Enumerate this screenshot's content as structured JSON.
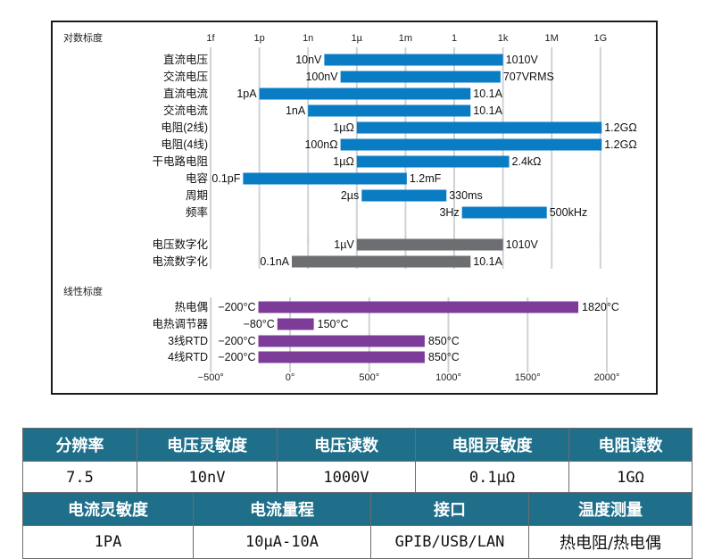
{
  "chart_data": {
    "type": "range-bar",
    "log_panel": {
      "title": "对数标度",
      "axis_ticks": [
        "1f",
        "1p",
        "1n",
        "1µ",
        "1m",
        "1",
        "1k",
        "1M",
        "1G"
      ],
      "measurement_groups": [
        {
          "rows": [
            {
              "label": "直流电压",
              "from": "10nV",
              "to": "1010V",
              "from_exp": -8,
              "to_exp": 3.004
            },
            {
              "label": "交流电压",
              "from": "100nV",
              "to": "707VRMS",
              "from_exp": -7,
              "to_exp": 2.849
            },
            {
              "label": "直流电流",
              "from": "1pA",
              "to": "10.1A",
              "from_exp": -12,
              "to_exp": 1.004
            },
            {
              "label": "交流电流",
              "from": "1nA",
              "to": "10.1A",
              "from_exp": -9,
              "to_exp": 1.004
            },
            {
              "label": "电阻(2线)",
              "from": "1µΩ",
              "to": "1.2GΩ",
              "from_exp": -6,
              "to_exp": 9.079
            },
            {
              "label": "电阻(4线)",
              "from": "100nΩ",
              "to": "1.2GΩ",
              "from_exp": -7,
              "to_exp": 9.079
            },
            {
              "label": "干电路电阻",
              "from": "1µΩ",
              "to": "2.4kΩ",
              "from_exp": -6,
              "to_exp": 3.38
            },
            {
              "label": "电容",
              "from": "0.1pF",
              "to": "1.2mF",
              "from_exp": -13,
              "to_exp": -2.921
            },
            {
              "label": "周期",
              "from": "2µs",
              "to": "330ms",
              "from_exp": -5.699,
              "to_exp": -0.481
            },
            {
              "label": "频率",
              "from": "3Hz",
              "to": "500kHz",
              "from_exp": 0.477,
              "to_exp": 5.699
            }
          ],
          "color": "#0a7cc4"
        },
        {
          "rows": [
            {
              "label": "电压数字化",
              "from": "1µV",
              "to": "1010V",
              "from_exp": -6,
              "to_exp": 3.004
            },
            {
              "label": "电流数字化",
              "from": "0.1nA",
              "to": "10.1A",
              "from_exp": -10,
              "to_exp": 1.004
            }
          ],
          "color": "#6d6e71"
        }
      ]
    },
    "linear_panel": {
      "title": "线性标度",
      "axis_ticks": [
        "−500°",
        "0°",
        "500°",
        "1000°",
        "1500°",
        "2000°"
      ],
      "tick_values": [
        -500,
        0,
        500,
        1000,
        1500,
        2000
      ],
      "rows": [
        {
          "label": "热电偶",
          "from": "−200°C",
          "to": "1820°C",
          "from_val": -200,
          "to_val": 1820
        },
        {
          "label": "电热调节器",
          "from": "−80°C",
          "to": "150°C",
          "from_val": -80,
          "to_val": 150
        },
        {
          "label": "3线RTD",
          "from": "−200°C",
          "to": "850°C",
          "from_val": -200,
          "to_val": 850
        },
        {
          "label": "4线RTD",
          "from": "−200°C",
          "to": "850°C",
          "from_val": -200,
          "to_val": 850
        }
      ],
      "color": "#7d3c98"
    }
  },
  "spec_table": {
    "header_color": "#1f6f8b",
    "row1_headers": [
      "分辨率",
      "电压灵敏度",
      "电压读数",
      "电阻灵敏度",
      "电阻读数"
    ],
    "row1_values": [
      "7.5",
      "10nV",
      "1000V",
      "0.1μΩ",
      "1GΩ"
    ],
    "row2_headers": [
      "电流灵敏度",
      "电流量程",
      "接口",
      "温度测量"
    ],
    "row2_values": [
      "1PA",
      "10μA-10A",
      "GPIB/USB/LAN",
      "热电阻/热电偶"
    ]
  }
}
